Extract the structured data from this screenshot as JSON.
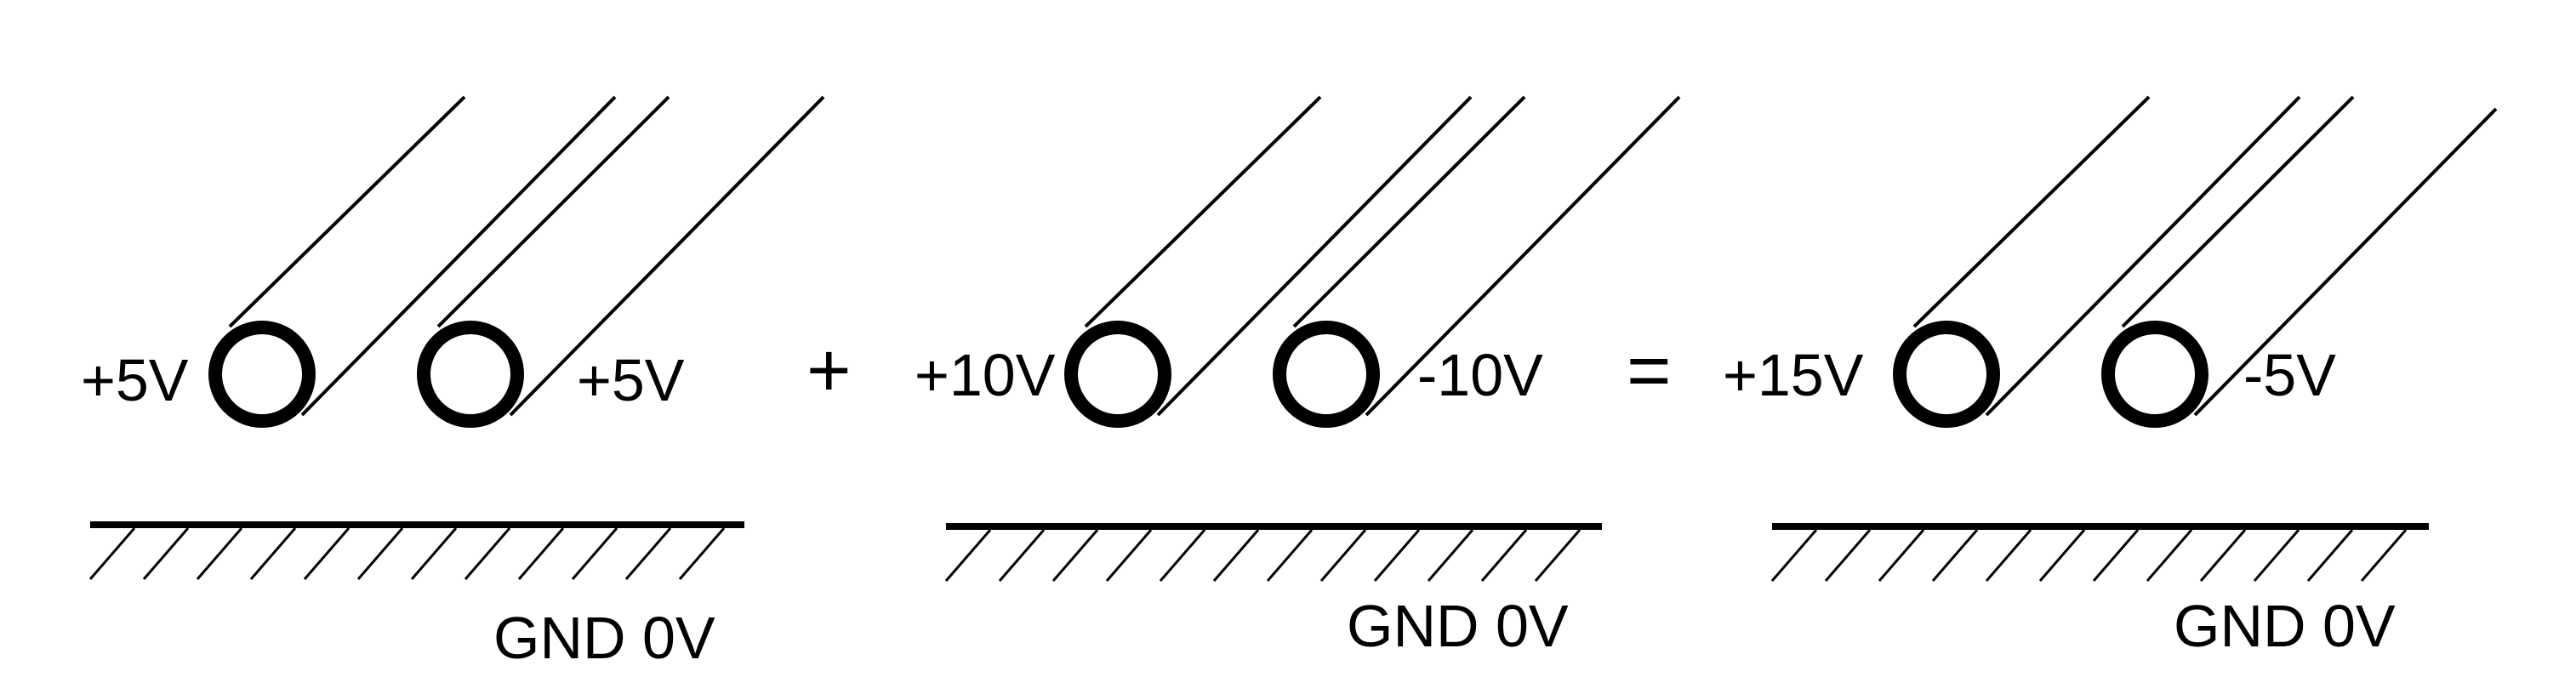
{
  "colors": {
    "stroke": "#000000",
    "background": "#ffffff"
  },
  "panels": [
    {
      "left_conductor_label": "+5V",
      "right_conductor_label": "+5V",
      "ground_label": "GND 0V"
    },
    {
      "left_conductor_label": "+10V",
      "right_conductor_label": "-10V",
      "ground_label": "GND 0V"
    },
    {
      "left_conductor_label": "+15V",
      "right_conductor_label": "-5V",
      "ground_label": "GND 0V"
    }
  ],
  "operators": {
    "plus": "+",
    "equals": "="
  }
}
